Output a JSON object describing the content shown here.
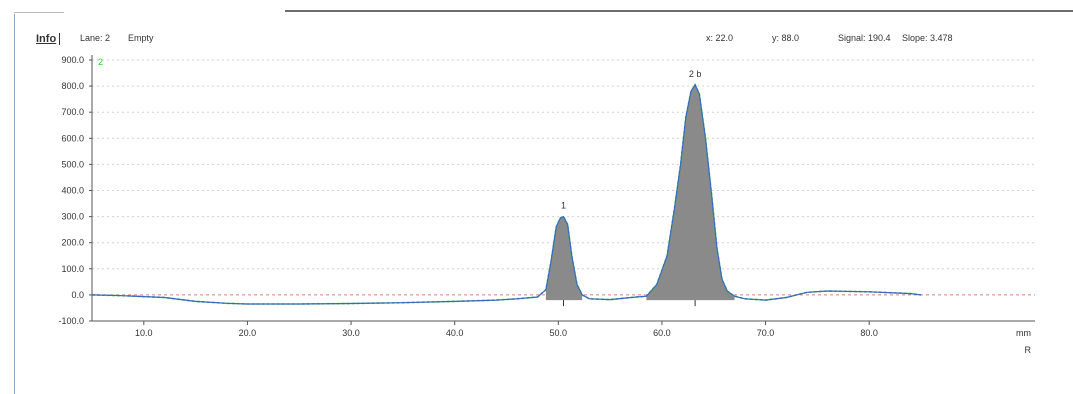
{
  "info_bar": {
    "info_button": "Info",
    "lane": "Lane: 2",
    "status": "Empty",
    "x_readout": "x: 22.0",
    "y_readout": "y: 88.0",
    "signal": "Signal: 190.4",
    "slope": "Slope: 3.478"
  },
  "colors": {
    "fill": "#8a8a8a",
    "baseline": "#e87a7a",
    "trace_blue": "#3a66c8",
    "trace_green": "#33cc33",
    "trace_dark": "#444444",
    "grid": "#d2d2d2"
  },
  "chart_data": {
    "type": "area",
    "xlabel": "mm",
    "y_unit_label": "R",
    "xlim": [
      5.0,
      96.0
    ],
    "ylim": [
      -100.0,
      900.0
    ],
    "grid": true,
    "x_ticks": [
      "10.0",
      "20.0",
      "30.0",
      "40.0",
      "50.0",
      "60.0",
      "70.0",
      "80.0"
    ],
    "y_ticks": [
      "900.0",
      "800.0",
      "700.0",
      "600.0",
      "500.0",
      "400.0",
      "300.0",
      "200.0",
      "100.0",
      "0.0",
      "-100.0"
    ],
    "lane_label": "2",
    "peaks": [
      {
        "label": "1",
        "center": 50.5,
        "height": 300
      },
      {
        "label": "2 b",
        "center": 63.2,
        "height": 805
      }
    ],
    "series": [
      {
        "x": [
          5,
          8,
          12,
          15,
          18,
          20,
          25,
          30,
          35,
          40,
          44,
          46,
          48,
          48.8,
          49.3,
          49.8,
          50.2,
          50.5,
          50.9,
          51.3,
          51.8,
          52.3,
          53,
          55,
          57,
          58.5,
          59.5,
          60.5,
          61.2,
          61.8,
          62.3,
          62.8,
          63.2,
          63.6,
          64.2,
          64.8,
          65.3,
          65.8,
          66.3,
          67,
          68,
          70,
          72,
          74,
          76,
          80,
          84,
          85
        ],
        "values": [
          0,
          -3,
          -10,
          -25,
          -32,
          -35,
          -35,
          -33,
          -30,
          -25,
          -20,
          -15,
          -8,
          20,
          130,
          260,
          295,
          300,
          270,
          150,
          40,
          0,
          -15,
          -18,
          -10,
          -5,
          40,
          150,
          330,
          500,
          680,
          780,
          805,
          770,
          600,
          380,
          180,
          60,
          15,
          -5,
          -15,
          -20,
          -10,
          10,
          15,
          12,
          5,
          0
        ]
      }
    ]
  }
}
